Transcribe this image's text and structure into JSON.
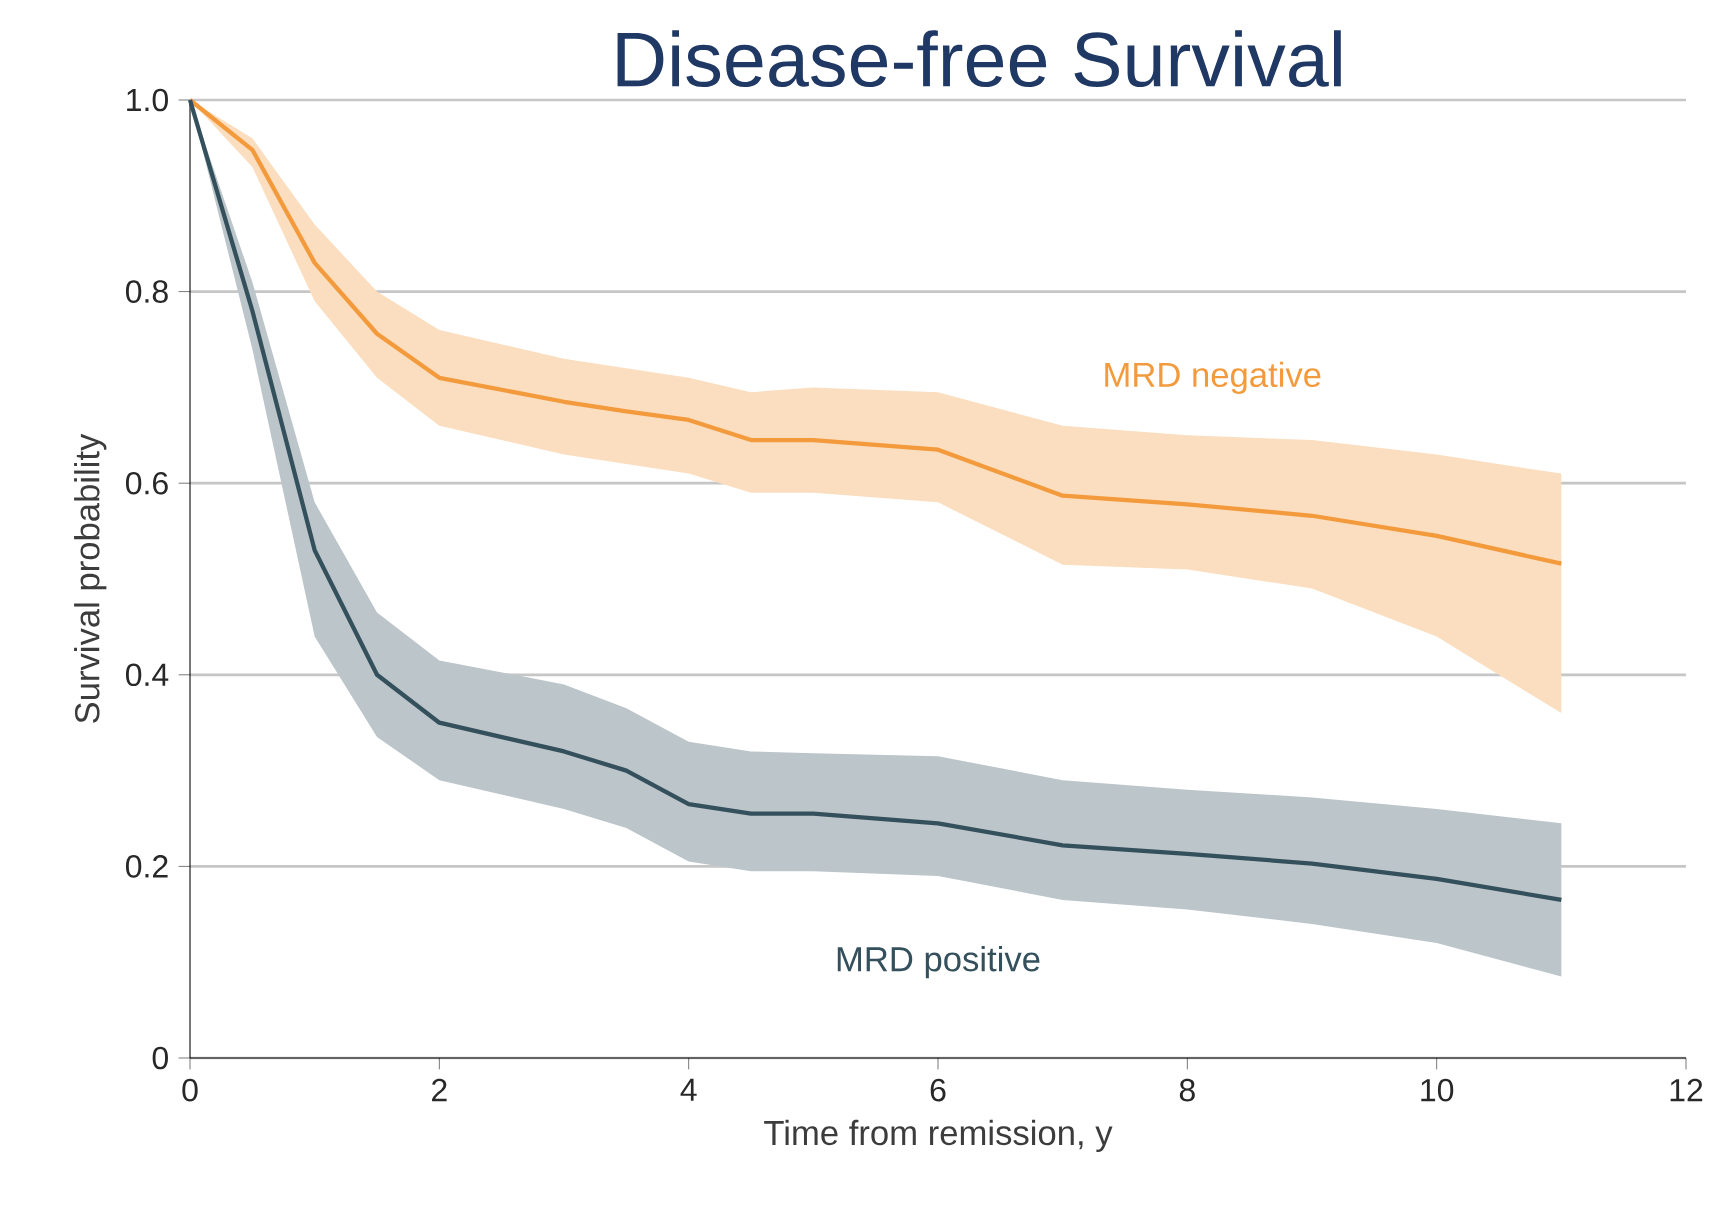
{
  "chart_data": {
    "type": "line",
    "title": "Disease-free Survival",
    "xlabel": "Time from remission, y",
    "ylabel": "Survival probability",
    "xlim": [
      0,
      12
    ],
    "xticks": [
      0,
      2,
      4,
      6,
      8,
      10,
      12
    ],
    "ylim": [
      0,
      1.0
    ],
    "yticks": [
      0,
      0.2,
      0.4,
      0.6,
      0.8,
      {
        "value": 1.0,
        "label": "1.0"
      }
    ],
    "grid": "y",
    "line_style": "solid",
    "series": [
      {
        "name": "MRD negative",
        "color": "#f39a3c",
        "x": [
          0,
          0.5,
          1,
          1.5,
          2,
          3,
          3.5,
          4,
          4.5,
          5,
          6,
          7,
          8,
          9,
          10,
          11
        ],
        "values": [
          1.0,
          0.948,
          0.83,
          0.756,
          0.71,
          0.685,
          0.675,
          0.666,
          0.645,
          0.645,
          0.635,
          0.587,
          0.578,
          0.566,
          0.545,
          0.516
        ],
        "lower": [
          1.0,
          0.93,
          0.79,
          0.71,
          0.66,
          0.63,
          0.62,
          0.61,
          0.59,
          0.59,
          0.58,
          0.515,
          0.51,
          0.49,
          0.44,
          0.36
        ],
        "upper": [
          1.0,
          0.96,
          0.87,
          0.8,
          0.76,
          0.73,
          0.72,
          0.71,
          0.695,
          0.7,
          0.695,
          0.66,
          0.65,
          0.645,
          0.63,
          0.61
        ]
      },
      {
        "name": "MRD positive",
        "color": "#34505c",
        "x": [
          0,
          0.5,
          1,
          1.5,
          2,
          3,
          3.5,
          4,
          4.5,
          5,
          6,
          7,
          8,
          9,
          10,
          11
        ],
        "values": [
          1.0,
          0.78,
          0.53,
          0.4,
          0.35,
          0.32,
          0.3,
          0.265,
          0.255,
          0.255,
          0.245,
          0.222,
          0.213,
          0.203,
          0.187,
          0.165
        ],
        "lower": [
          1.0,
          0.74,
          0.44,
          0.335,
          0.29,
          0.26,
          0.24,
          0.205,
          0.195,
          0.195,
          0.19,
          0.165,
          0.155,
          0.14,
          0.12,
          0.085
        ],
        "upper": [
          1.0,
          0.81,
          0.58,
          0.465,
          0.415,
          0.39,
          0.365,
          0.33,
          0.32,
          0.318,
          0.315,
          0.29,
          0.28,
          0.272,
          0.26,
          0.245
        ]
      }
    ]
  }
}
